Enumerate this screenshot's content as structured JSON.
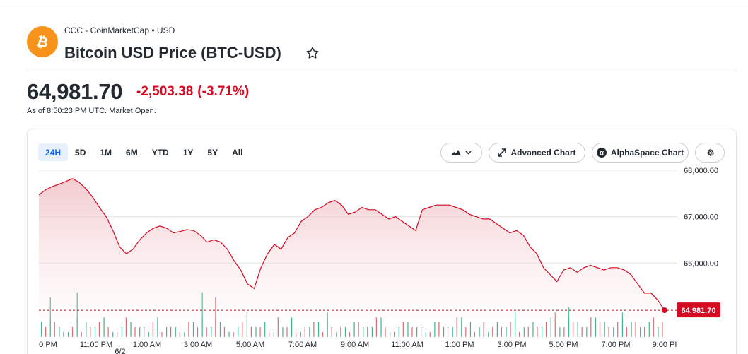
{
  "header": {
    "source": "CCC - CoinMarketCap • USD",
    "title": "Bitcoin USD Price (BTC-USD)",
    "logo_icon": "bitcoin-icon",
    "logo_color": "#f7931a"
  },
  "quote": {
    "price": "64,981.70",
    "change": "-2,503.38",
    "change_pct": "(-3.71%)",
    "as_of": "As of 8:50:23 PM UTC. Market Open.",
    "change_color": "#d60a22"
  },
  "toolbar": {
    "ranges": [
      "24H",
      "5D",
      "1M",
      "6M",
      "YTD",
      "1Y",
      "5Y",
      "All"
    ],
    "active_range": "24H",
    "chart_type_icon": "mountain-chart-icon",
    "advanced_chart_label": "Advanced Chart",
    "alphaspace_label": "AlphaSpace Chart",
    "settings_icon": "gear-icon"
  },
  "chart_data": {
    "type": "area",
    "title": "",
    "ylim": [
      64800,
      68000
    ],
    "yticks": [
      "68,000.00",
      "67,000.00",
      "66,000.00"
    ],
    "ytick_values": [
      68000,
      67000,
      66000
    ],
    "xticks": [
      "0 PM",
      "11:00 PM",
      "1:00 AM",
      "3:00 AM",
      "5:00 AM",
      "7:00 AM",
      "9:00 AM",
      "11:00 AM",
      "1:00 PM",
      "3:00 PM",
      "5:00 PM",
      "7:00 PM",
      "9:00 PI"
    ],
    "date_label": "6/2",
    "last_price": 64981.7,
    "last_price_label": "64,981.70",
    "line_color": "#d60a22",
    "grid": true,
    "series": [
      {
        "values": [
          67470,
          67580,
          67650,
          67700,
          67760,
          67820,
          67740,
          67600,
          67420,
          67200,
          67000,
          66700,
          66350,
          66200,
          66300,
          66500,
          66650,
          66750,
          66800,
          66750,
          66650,
          66680,
          66720,
          66700,
          66600,
          66450,
          66500,
          66450,
          66300,
          66050,
          65850,
          65550,
          65450,
          65900,
          66200,
          66400,
          66300,
          66550,
          66650,
          66900,
          67000,
          67150,
          67200,
          67300,
          67350,
          67250,
          67050,
          67100,
          67200,
          67150,
          67150,
          67050,
          66950,
          67000,
          66900,
          66800,
          66700,
          67150,
          67200,
          67250,
          67250,
          67250,
          67200,
          67150,
          67050,
          67000,
          66950,
          66950,
          66850,
          66750,
          66650,
          66700,
          66600,
          66350,
          66200,
          65900,
          65750,
          65600,
          65850,
          65900,
          65800,
          65900,
          65950,
          65900,
          65850,
          65900,
          65900,
          65850,
          65750,
          65550,
          65350,
          65350,
          65200,
          64980
        ]
      }
    ],
    "volume": {
      "green": [
        3,
        8,
        2,
        1,
        9,
        3,
        2,
        4,
        1,
        2,
        3,
        2,
        1,
        4,
        2,
        2,
        1,
        3,
        9,
        2,
        3,
        1,
        2,
        5,
        2,
        3,
        1,
        2,
        4,
        1,
        2,
        3,
        5,
        1,
        2,
        3,
        2,
        2,
        4,
        1,
        2,
        3,
        2,
        1,
        3,
        2,
        2,
        4,
        3,
        2,
        1,
        3,
        2,
        5,
        2,
        3,
        2,
        4,
        2,
        6,
        3,
        2,
        4,
        3,
        2,
        5,
        3,
        2,
        3,
        2
      ],
      "red": [
        2,
        3,
        1,
        2,
        1,
        2,
        3,
        2,
        1,
        4,
        2,
        2,
        3,
        1,
        2,
        1,
        3,
        2,
        2,
        8,
        2,
        1,
        3,
        2,
        2,
        1,
        4,
        2,
        1,
        2,
        3,
        1,
        2,
        2,
        1,
        3,
        2,
        4,
        2,
        1,
        3,
        2,
        2,
        1,
        3,
        2,
        4,
        2,
        1,
        3,
        2,
        2,
        3,
        1,
        2,
        2,
        3,
        5,
        2,
        3,
        2,
        4,
        3,
        2,
        3,
        2,
        3,
        2,
        4,
        3
      ]
    }
  }
}
